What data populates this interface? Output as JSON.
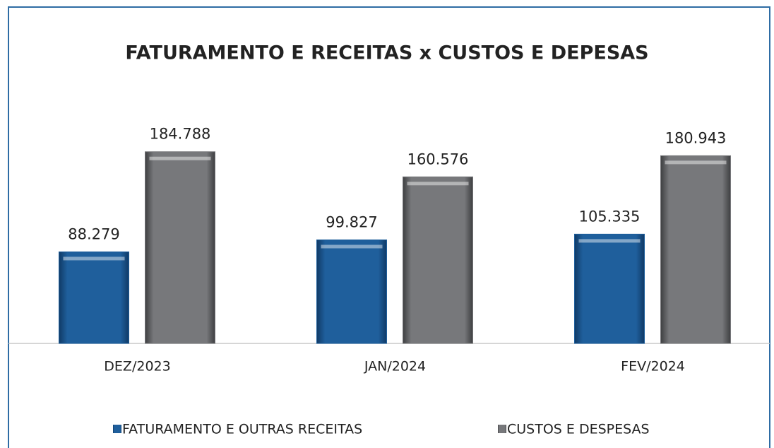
{
  "chart_data": {
    "type": "bar",
    "title": "FATURAMENTO E RECEITAS x CUSTOS E DEPESAS",
    "categories": [
      "DEZ/2023",
      "JAN/2024",
      "FEV/2024"
    ],
    "series": [
      {
        "name": "FATURAMENTO E OUTRAS RECEITAS",
        "color": "#1f5f9c",
        "values": [
          88279,
          99827,
          105335
        ],
        "value_labels": [
          "88.279",
          "99.827",
          "105.335"
        ]
      },
      {
        "name": "CUSTOS E DESPESAS",
        "color": "#77787b",
        "values": [
          184788,
          160576,
          180943
        ],
        "value_labels": [
          "184.788",
          "160.576",
          "180.943"
        ]
      }
    ],
    "ylim": [
      0,
      250000
    ],
    "legend": "bottom"
  }
}
